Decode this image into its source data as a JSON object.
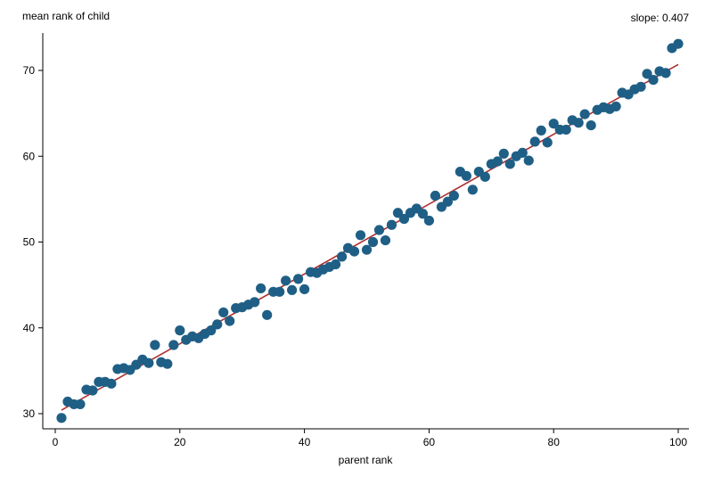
{
  "chart_data": {
    "type": "scatter",
    "title": "",
    "xlabel": "parent rank",
    "ylabel": "mean rank of child",
    "annotation": "slope: 0.407",
    "xlim": [
      -2,
      102
    ],
    "ylim": [
      28,
      75
    ],
    "xticks": [
      0,
      20,
      40,
      60,
      80,
      100
    ],
    "yticks": [
      30,
      40,
      50,
      60,
      70
    ],
    "grid": false,
    "legend": "none",
    "marker_color": "#1f5f86",
    "fit_line_color": "#b03030",
    "fit_line": {
      "slope": 0.407,
      "intercept": 30.0
    },
    "series": [
      {
        "points": [
          [
            1,
            29.5
          ],
          [
            2,
            31.4
          ],
          [
            3,
            31.1
          ],
          [
            4,
            31.1
          ],
          [
            5,
            32.8
          ],
          [
            6,
            32.7
          ],
          [
            7,
            33.7
          ],
          [
            8,
            33.7
          ],
          [
            9,
            33.5
          ],
          [
            10,
            35.2
          ],
          [
            11,
            35.3
          ],
          [
            12,
            35.1
          ],
          [
            13,
            35.7
          ],
          [
            14,
            36.3
          ],
          [
            15,
            35.9
          ],
          [
            16,
            38.0
          ],
          [
            17,
            36.0
          ],
          [
            18,
            35.8
          ],
          [
            19,
            38.0
          ],
          [
            20,
            39.7
          ],
          [
            21,
            38.6
          ],
          [
            22,
            39.0
          ],
          [
            23,
            38.8
          ],
          [
            24,
            39.3
          ],
          [
            25,
            39.7
          ],
          [
            26,
            40.4
          ],
          [
            27,
            41.8
          ],
          [
            28,
            40.8
          ],
          [
            29,
            42.3
          ],
          [
            30,
            42.4
          ],
          [
            31,
            42.7
          ],
          [
            32,
            43.0
          ],
          [
            33,
            44.6
          ],
          [
            34,
            41.5
          ],
          [
            35,
            44.2
          ],
          [
            36,
            44.2
          ],
          [
            37,
            45.5
          ],
          [
            38,
            44.4
          ],
          [
            39,
            45.7
          ],
          [
            40,
            44.5
          ],
          [
            41,
            46.5
          ],
          [
            42,
            46.4
          ],
          [
            43,
            46.8
          ],
          [
            44,
            47.1
          ],
          [
            45,
            47.4
          ],
          [
            46,
            48.3
          ],
          [
            47,
            49.3
          ],
          [
            48,
            48.9
          ],
          [
            49,
            50.8
          ],
          [
            50,
            49.1
          ],
          [
            51,
            50.0
          ],
          [
            52,
            51.4
          ],
          [
            53,
            50.2
          ],
          [
            54,
            52.0
          ],
          [
            55,
            53.4
          ],
          [
            56,
            52.7
          ],
          [
            57,
            53.4
          ],
          [
            58,
            53.9
          ],
          [
            59,
            53.3
          ],
          [
            60,
            52.5
          ],
          [
            61,
            55.4
          ],
          [
            62,
            54.1
          ],
          [
            63,
            54.7
          ],
          [
            64,
            55.4
          ],
          [
            65,
            58.2
          ],
          [
            66,
            57.7
          ],
          [
            67,
            56.1
          ],
          [
            68,
            58.2
          ],
          [
            69,
            57.6
          ],
          [
            70,
            59.1
          ],
          [
            71,
            59.4
          ],
          [
            72,
            60.3
          ],
          [
            73,
            59.1
          ],
          [
            74,
            60.0
          ],
          [
            75,
            60.4
          ],
          [
            76,
            59.5
          ],
          [
            77,
            61.7
          ],
          [
            78,
            63.0
          ],
          [
            79,
            61.6
          ],
          [
            80,
            63.8
          ],
          [
            81,
            63.1
          ],
          [
            82,
            63.1
          ],
          [
            83,
            64.2
          ],
          [
            84,
            63.9
          ],
          [
            85,
            64.9
          ],
          [
            86,
            63.6
          ],
          [
            87,
            65.4
          ],
          [
            88,
            65.7
          ],
          [
            89,
            65.5
          ],
          [
            90,
            65.8
          ],
          [
            91,
            67.4
          ],
          [
            92,
            67.2
          ],
          [
            93,
            67.8
          ],
          [
            94,
            68.1
          ],
          [
            95,
            69.6
          ],
          [
            96,
            68.9
          ],
          [
            97,
            69.9
          ],
          [
            98,
            69.7
          ],
          [
            99,
            72.6
          ],
          [
            100,
            73.1
          ]
        ]
      }
    ]
  }
}
